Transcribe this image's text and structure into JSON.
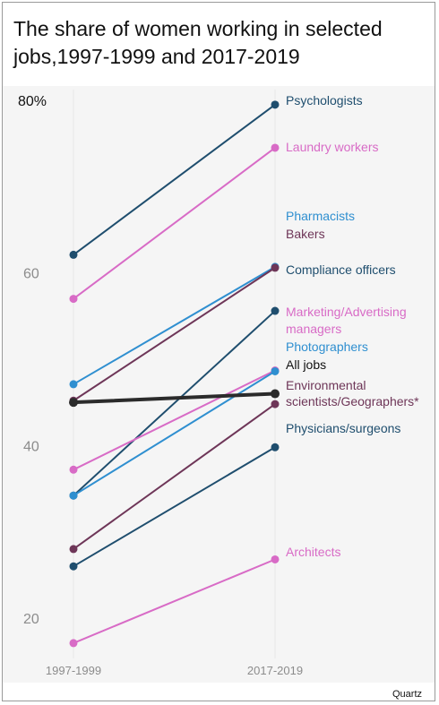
{
  "title": "The share of women working in selected jobs,1997-1999 and 2017-2019",
  "credit": "Quartz",
  "chart_data": {
    "type": "line",
    "title": "The share of women working in selected jobs,1997-1999 and 2017-2019",
    "x": [
      "1997-1999",
      "2017-2019"
    ],
    "ylim": [
      15,
      80
    ],
    "yticks": [
      {
        "value": 80,
        "label": "80%"
      },
      {
        "value": 60,
        "label": "60"
      },
      {
        "value": 40,
        "label": "40"
      },
      {
        "value": 20,
        "label": "20"
      }
    ],
    "grid": false,
    "series": [
      {
        "name": "Psychologists",
        "values": [
          62.1,
          79.5
        ],
        "color": "#1f4e6e"
      },
      {
        "name": "Laundry workers",
        "values": [
          57.0,
          74.5
        ],
        "color": "#d86bc6"
      },
      {
        "name": "Pharmacists",
        "values": [
          47.1,
          60.7
        ],
        "color": "#2f8fd0"
      },
      {
        "name": "Bakers",
        "values": [
          45.2,
          60.6
        ],
        "color": "#6e3658"
      },
      {
        "name": "Compliance officers",
        "values": [
          34.2,
          55.6
        ],
        "color": "#1f4e6e"
      },
      {
        "name": "Marketing/Advertising managers",
        "values": [
          37.2,
          48.7
        ],
        "color": "#d86bc6"
      },
      {
        "name": "Photographers",
        "values": [
          34.2,
          48.6
        ],
        "color": "#2f8fd0"
      },
      {
        "name": "All jobs",
        "values": [
          45.0,
          46.0
        ],
        "color": "#2b2b2b",
        "bold": true
      },
      {
        "name": "Environmental scientists/Geographers*",
        "values": [
          28.0,
          44.8
        ],
        "color": "#6e3658"
      },
      {
        "name": "Physicians/surgeons",
        "values": [
          26.0,
          39.8
        ],
        "color": "#1f4e6e"
      },
      {
        "name": "Architects",
        "values": [
          17.1,
          26.8
        ],
        "color": "#d86bc6"
      }
    ]
  }
}
